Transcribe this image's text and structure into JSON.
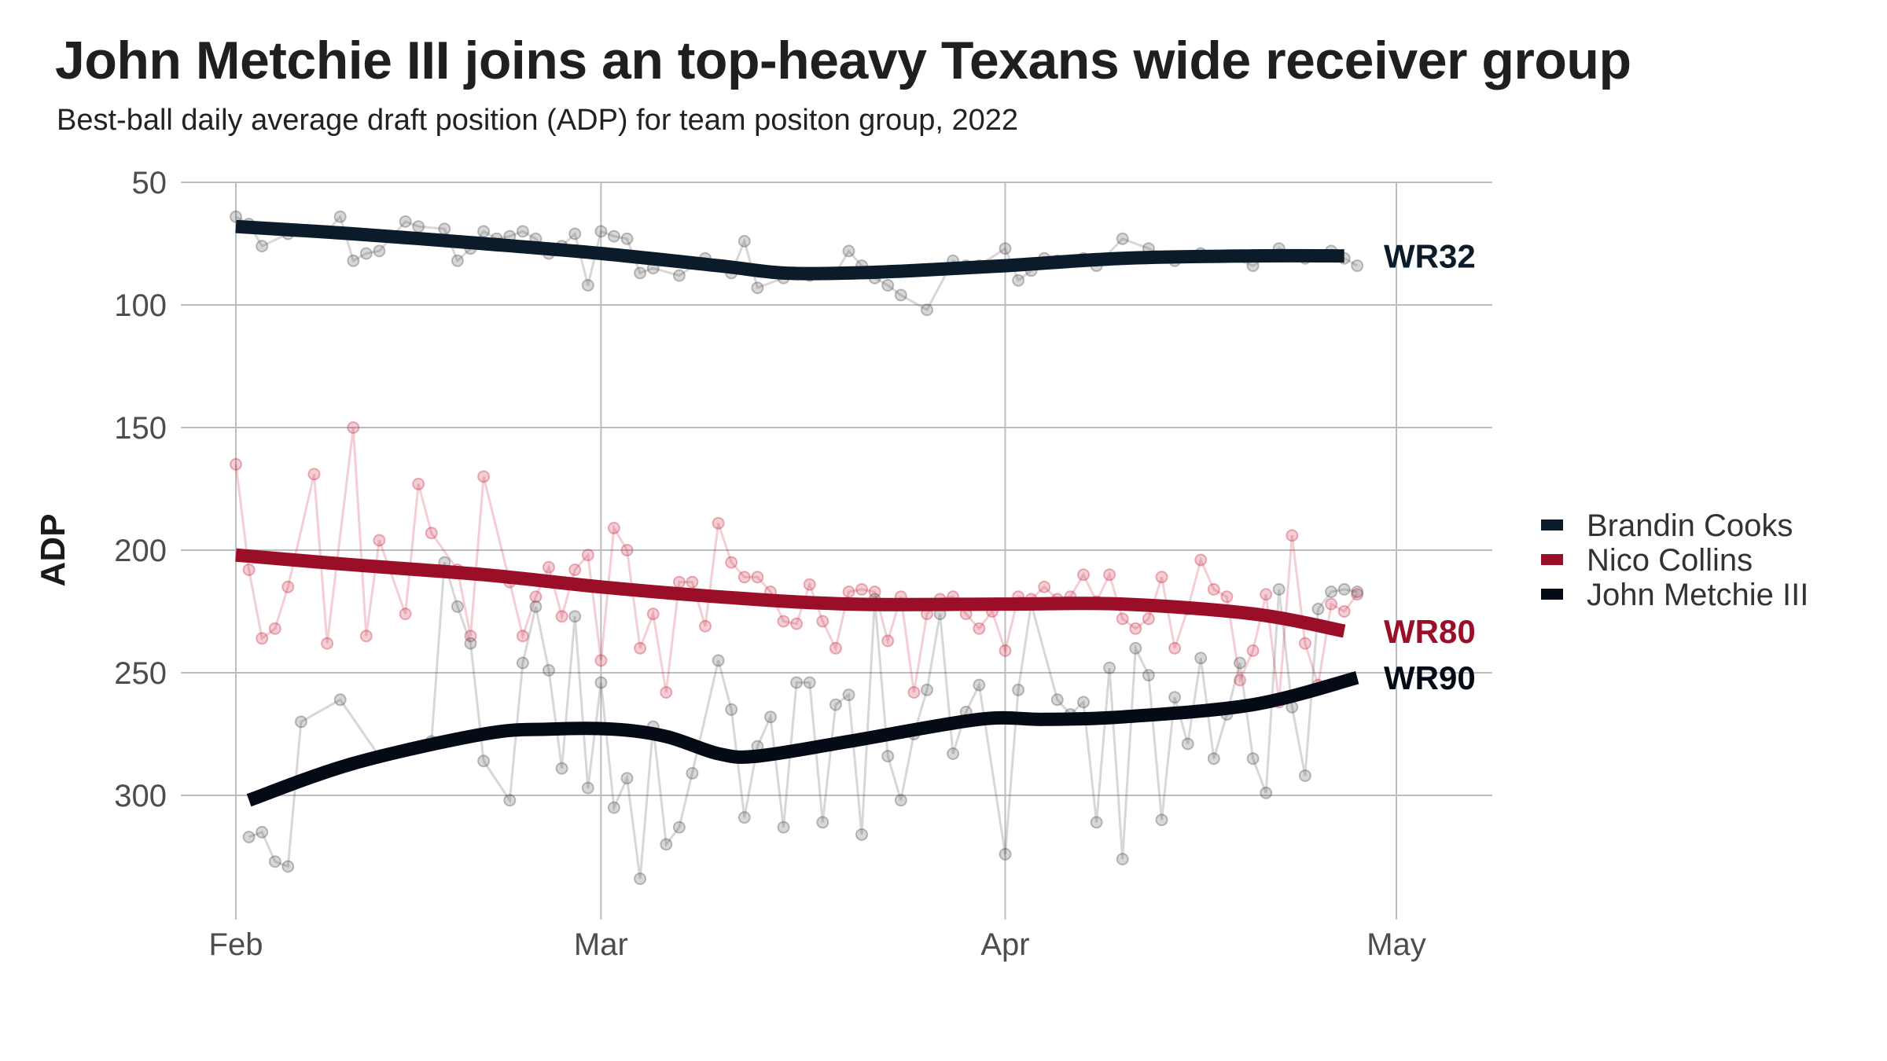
{
  "chart_data": {
    "type": "line",
    "title": "John Metchie III joins an top-heavy Texans wide receiver group",
    "subtitle": "Best-ball daily average draft position (ADP) for team positon group, 2022",
    "xlabel": "",
    "ylabel": "ADP",
    "x_ticks": [
      "Feb",
      "Mar",
      "Apr",
      "May"
    ],
    "y_ticks": [
      50,
      100,
      150,
      200,
      250,
      300
    ],
    "ylim": [
      50,
      350
    ],
    "y_reversed": true,
    "xlim": [
      "2022-02-01",
      "2022-05-01"
    ],
    "grid": true,
    "legend_position": "right",
    "series": [
      {
        "name": "Brandin Cooks",
        "color": "#0b1b29",
        "end_label": "WR32",
        "raw_x": [
          "2022-02-01",
          "2022-02-02",
          "2022-02-03",
          "2022-02-05",
          "2022-02-08",
          "2022-02-09",
          "2022-02-10",
          "2022-02-11",
          "2022-02-12",
          "2022-02-14",
          "2022-02-15",
          "2022-02-17",
          "2022-02-18",
          "2022-02-19",
          "2022-02-20",
          "2022-02-21",
          "2022-02-22",
          "2022-02-23",
          "2022-02-24",
          "2022-02-25",
          "2022-02-26",
          "2022-02-27",
          "2022-02-28",
          "2022-03-01",
          "2022-03-02",
          "2022-03-03",
          "2022-03-04",
          "2022-03-05",
          "2022-03-07",
          "2022-03-09",
          "2022-03-11",
          "2022-03-12",
          "2022-03-13",
          "2022-03-15",
          "2022-03-17",
          "2022-03-19",
          "2022-03-20",
          "2022-03-21",
          "2022-03-22",
          "2022-03-23",
          "2022-03-24",
          "2022-03-26",
          "2022-03-28",
          "2022-03-29",
          "2022-03-30",
          "2022-04-01",
          "2022-04-02",
          "2022-04-03",
          "2022-04-04",
          "2022-04-05",
          "2022-04-06",
          "2022-04-07",
          "2022-04-08",
          "2022-04-10",
          "2022-04-12",
          "2022-04-14",
          "2022-04-16",
          "2022-04-18",
          "2022-04-20",
          "2022-04-22",
          "2022-04-24",
          "2022-04-26",
          "2022-04-27",
          "2022-04-28"
        ],
        "raw_y": [
          64,
          67,
          76,
          71,
          70,
          64,
          82,
          79,
          78,
          66,
          68,
          69,
          82,
          77,
          70,
          73,
          72,
          70,
          73,
          79,
          76,
          71,
          92,
          70,
          72,
          73,
          87,
          85,
          88,
          81,
          87,
          74,
          93,
          89,
          88,
          87,
          78,
          84,
          89,
          92,
          96,
          102,
          82,
          84,
          84,
          77,
          90,
          86,
          81,
          82,
          82,
          81,
          84,
          73,
          77,
          82,
          79,
          80,
          84,
          77,
          81,
          78,
          81,
          84
        ],
        "smooth_x": [
          "2022-02-01",
          "2022-02-10",
          "2022-02-20",
          "2022-03-01",
          "2022-03-10",
          "2022-03-15",
          "2022-03-20",
          "2022-03-25",
          "2022-04-01",
          "2022-04-10",
          "2022-04-20",
          "2022-04-27"
        ],
        "smooth_y": [
          68,
          71,
          75,
          79,
          84,
          87,
          87,
          86,
          84,
          81,
          80,
          80
        ]
      },
      {
        "name": "Nico Collins",
        "color": "#9a0f27",
        "end_label": "WR80",
        "raw_x": [
          "2022-02-01",
          "2022-02-02",
          "2022-02-03",
          "2022-02-04",
          "2022-02-05",
          "2022-02-07",
          "2022-02-08",
          "2022-02-10",
          "2022-02-11",
          "2022-02-12",
          "2022-02-14",
          "2022-02-15",
          "2022-02-16",
          "2022-02-18",
          "2022-02-19",
          "2022-02-20",
          "2022-02-22",
          "2022-02-23",
          "2022-02-24",
          "2022-02-25",
          "2022-02-26",
          "2022-02-27",
          "2022-02-28",
          "2022-03-01",
          "2022-03-02",
          "2022-03-03",
          "2022-03-04",
          "2022-03-05",
          "2022-03-06",
          "2022-03-07",
          "2022-03-08",
          "2022-03-09",
          "2022-03-10",
          "2022-03-11",
          "2022-03-12",
          "2022-03-13",
          "2022-03-14",
          "2022-03-15",
          "2022-03-16",
          "2022-03-17",
          "2022-03-18",
          "2022-03-19",
          "2022-03-20",
          "2022-03-21",
          "2022-03-22",
          "2022-03-23",
          "2022-03-24",
          "2022-03-25",
          "2022-03-26",
          "2022-03-27",
          "2022-03-28",
          "2022-03-29",
          "2022-03-30",
          "2022-03-31",
          "2022-04-01",
          "2022-04-02",
          "2022-04-03",
          "2022-04-04",
          "2022-04-05",
          "2022-04-06",
          "2022-04-07",
          "2022-04-08",
          "2022-04-09",
          "2022-04-10",
          "2022-04-11",
          "2022-04-12",
          "2022-04-13",
          "2022-04-14",
          "2022-04-15",
          "2022-04-16",
          "2022-04-17",
          "2022-04-18",
          "2022-04-19",
          "2022-04-20",
          "2022-04-21",
          "2022-04-22",
          "2022-04-23",
          "2022-04-24",
          "2022-04-25",
          "2022-04-26",
          "2022-04-27",
          "2022-04-28"
        ],
        "raw_y": [
          165,
          208,
          236,
          232,
          215,
          169,
          238,
          150,
          235,
          196,
          226,
          173,
          193,
          208,
          235,
          170,
          213,
          235,
          219,
          207,
          227,
          208,
          202,
          245,
          191,
          200,
          240,
          226,
          258,
          213,
          213,
          231,
          189,
          205,
          211,
          211,
          217,
          229,
          230,
          214,
          229,
          240,
          217,
          216,
          217,
          237,
          219,
          258,
          226,
          220,
          219,
          226,
          232,
          225,
          241,
          219,
          220,
          215,
          220,
          219,
          210,
          221,
          210,
          228,
          232,
          228,
          211,
          240,
          224,
          204,
          216,
          219,
          253,
          241,
          218,
          262,
          194,
          238,
          255,
          222,
          225,
          218
        ],
        "smooth_x": [
          "2022-02-01",
          "2022-02-10",
          "2022-02-20",
          "2022-03-01",
          "2022-03-10",
          "2022-03-20",
          "2022-04-01",
          "2022-04-10",
          "2022-04-20",
          "2022-04-27"
        ],
        "smooth_y": [
          202,
          206,
          210,
          215,
          219,
          222,
          222,
          222,
          226,
          233
        ]
      },
      {
        "name": "John Metchie III",
        "color": "#050b16",
        "end_label": "WR90",
        "raw_x": [
          "2022-02-02",
          "2022-02-03",
          "2022-02-04",
          "2022-02-05",
          "2022-02-06",
          "2022-02-09",
          "2022-02-12",
          "2022-02-16",
          "2022-02-17",
          "2022-02-18",
          "2022-02-19",
          "2022-02-20",
          "2022-02-22",
          "2022-02-23",
          "2022-02-24",
          "2022-02-25",
          "2022-02-26",
          "2022-02-27",
          "2022-02-28",
          "2022-03-01",
          "2022-03-02",
          "2022-03-03",
          "2022-03-04",
          "2022-03-05",
          "2022-03-06",
          "2022-03-07",
          "2022-03-08",
          "2022-03-10",
          "2022-03-11",
          "2022-03-12",
          "2022-03-13",
          "2022-03-14",
          "2022-03-15",
          "2022-03-16",
          "2022-03-17",
          "2022-03-18",
          "2022-03-19",
          "2022-03-20",
          "2022-03-21",
          "2022-03-22",
          "2022-03-23",
          "2022-03-24",
          "2022-03-25",
          "2022-03-26",
          "2022-03-27",
          "2022-03-28",
          "2022-03-29",
          "2022-03-30",
          "2022-04-01",
          "2022-04-02",
          "2022-04-03",
          "2022-04-05",
          "2022-04-06",
          "2022-04-07",
          "2022-04-08",
          "2022-04-09",
          "2022-04-10",
          "2022-04-11",
          "2022-04-12",
          "2022-04-13",
          "2022-04-14",
          "2022-04-15",
          "2022-04-16",
          "2022-04-17",
          "2022-04-18",
          "2022-04-19",
          "2022-04-20",
          "2022-04-21",
          "2022-04-22",
          "2022-04-23",
          "2022-04-24",
          "2022-04-25",
          "2022-04-26",
          "2022-04-27",
          "2022-04-28"
        ],
        "raw_y": [
          317,
          315,
          327,
          329,
          270,
          261,
          284,
          278,
          205,
          223,
          238,
          286,
          302,
          246,
          223,
          249,
          289,
          227,
          297,
          254,
          305,
          293,
          334,
          272,
          320,
          313,
          291,
          245,
          265,
          309,
          280,
          268,
          313,
          254,
          254,
          311,
          263,
          259,
          316,
          220,
          284,
          302,
          275,
          257,
          226,
          283,
          266,
          255,
          324,
          257,
          222,
          261,
          267,
          262,
          311,
          248,
          326,
          240,
          251,
          310,
          260,
          279,
          244,
          285,
          267,
          246,
          285,
          299,
          216,
          264,
          292,
          224,
          217,
          216,
          217
        ],
        "smooth_x": [
          "2022-02-02",
          "2022-02-10",
          "2022-02-20",
          "2022-02-25",
          "2022-03-02",
          "2022-03-06",
          "2022-03-10",
          "2022-03-13",
          "2022-03-20",
          "2022-03-30",
          "2022-04-04",
          "2022-04-10",
          "2022-04-20",
          "2022-04-28"
        ],
        "smooth_y": [
          302,
          287,
          275,
          273,
          273,
          276,
          283,
          284,
          278,
          269,
          269,
          268,
          263,
          252
        ]
      }
    ]
  }
}
